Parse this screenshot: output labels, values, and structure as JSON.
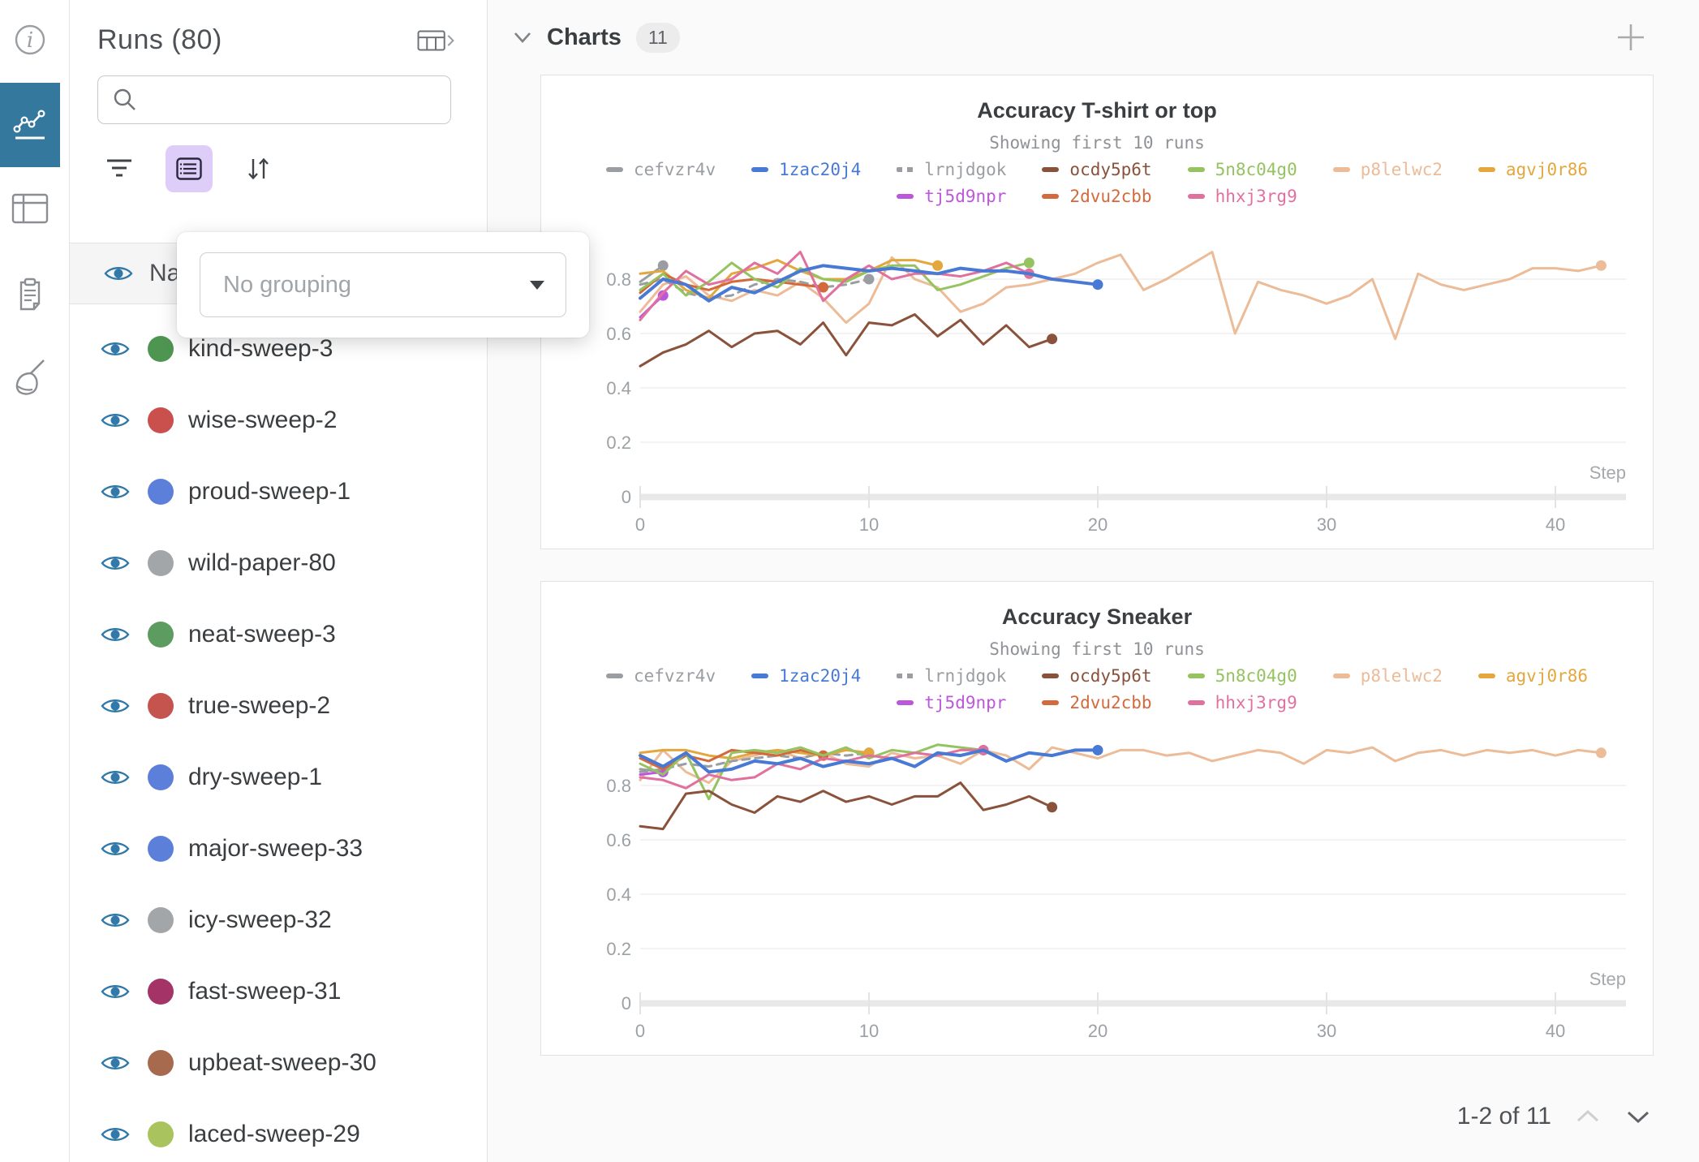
{
  "colors": {
    "rail_active_bg": "#35789E",
    "eye_icon": "#3179A8",
    "group_button_bg": "#DECDF8",
    "panel_border": "#E1E1E1",
    "axis_text": "#9CA1A6",
    "grid_line": "#EFEFEF"
  },
  "rail": {
    "items": [
      {
        "icon": "info-icon",
        "active": false
      },
      {
        "icon": "line-chart-icon",
        "active": true
      },
      {
        "icon": "table-icon",
        "active": false
      },
      {
        "icon": "report-icon",
        "active": false
      },
      {
        "icon": "sweep-broom-icon",
        "active": false
      }
    ]
  },
  "runs_panel": {
    "title": "Runs (80)",
    "search": {
      "value": "",
      "placeholder": ""
    },
    "header_row_label": "Name",
    "grouping_popup": {
      "value": "No grouping"
    },
    "runs": [
      {
        "name": "kind-sweep-3",
        "color": "#4F9552"
      },
      {
        "name": "wise-sweep-2",
        "color": "#C9504C"
      },
      {
        "name": "proud-sweep-1",
        "color": "#5C7FD9"
      },
      {
        "name": "wild-paper-80",
        "color": "#A3A6A9"
      },
      {
        "name": "neat-sweep-3",
        "color": "#5C9C60"
      },
      {
        "name": "true-sweep-2",
        "color": "#C5544F"
      },
      {
        "name": "dry-sweep-1",
        "color": "#5C7FD9"
      },
      {
        "name": "major-sweep-33",
        "color": "#5C7FD9"
      },
      {
        "name": "icy-sweep-32",
        "color": "#A3A6A9"
      },
      {
        "name": "fast-sweep-31",
        "color": "#A43467"
      },
      {
        "name": "upbeat-sweep-30",
        "color": "#A76A4E"
      },
      {
        "name": "laced-sweep-29",
        "color": "#A9C45F"
      }
    ]
  },
  "main": {
    "section_title": "Charts",
    "section_count": "11",
    "pagination_label": "1-2 of 11"
  },
  "chart_data": [
    {
      "type": "line",
      "title": "Accuracy T-shirt or top",
      "subtitle": "Showing first 10 runs",
      "xlabel": "Step",
      "xlim": [
        0,
        43
      ],
      "ylim": [
        0,
        1
      ],
      "x_ticks": [
        0,
        10,
        20,
        30,
        40
      ],
      "y_ticks": [
        0,
        0.2,
        0.4,
        0.6,
        0.8
      ],
      "grid": true,
      "legend_position": "top",
      "legend_split": 7,
      "series": [
        {
          "name": "cefvzr4v",
          "color": "#9A9EA3",
          "dash": false,
          "z": 3,
          "x": [
            0,
            1
          ],
          "y": [
            0.79,
            0.85
          ]
        },
        {
          "name": "1zac20j4",
          "color": "#4879D4",
          "dash": false,
          "z": 9,
          "width": 4,
          "x": [
            0,
            1,
            2,
            3,
            4,
            5,
            6,
            7,
            8,
            9,
            10,
            11,
            12,
            13,
            14,
            15,
            16,
            17,
            18,
            19,
            20
          ],
          "y": [
            0.73,
            0.8,
            0.78,
            0.72,
            0.77,
            0.75,
            0.79,
            0.83,
            0.85,
            0.84,
            0.83,
            0.84,
            0.83,
            0.82,
            0.84,
            0.83,
            0.83,
            0.82,
            0.8,
            0.79,
            0.78
          ]
        },
        {
          "name": "lrnjdgok",
          "color": "#9A9EA3",
          "dash": true,
          "z": 4,
          "x": [
            0,
            1,
            2,
            3,
            4,
            5,
            6,
            7,
            8,
            9,
            10
          ],
          "y": [
            0.78,
            0.8,
            0.75,
            0.73,
            0.74,
            0.78,
            0.8,
            0.79,
            0.77,
            0.78,
            0.8
          ]
        },
        {
          "name": "ocdy5p6t",
          "color": "#8A523B",
          "dash": false,
          "z": 8,
          "x": [
            0,
            1,
            2,
            3,
            4,
            5,
            6,
            7,
            8,
            9,
            10,
            11,
            12,
            13,
            14,
            15,
            16,
            17,
            18
          ],
          "y": [
            0.48,
            0.53,
            0.56,
            0.61,
            0.55,
            0.6,
            0.61,
            0.56,
            0.64,
            0.52,
            0.64,
            0.63,
            0.67,
            0.59,
            0.65,
            0.56,
            0.63,
            0.55,
            0.58
          ]
        },
        {
          "name": "5n8c04g0",
          "color": "#94C360",
          "dash": false,
          "z": 6,
          "x": [
            0,
            1,
            2,
            3,
            4,
            5,
            6,
            7,
            8,
            9,
            10,
            11,
            12,
            13,
            14,
            15,
            16,
            17
          ],
          "y": [
            0.76,
            0.82,
            0.74,
            0.79,
            0.86,
            0.8,
            0.77,
            0.84,
            0.8,
            0.79,
            0.83,
            0.85,
            0.85,
            0.76,
            0.78,
            0.81,
            0.84,
            0.86
          ]
        },
        {
          "name": "p8lelwc2",
          "color": "#ECBB97",
          "dash": false,
          "z": 1,
          "x": [
            0,
            1,
            2,
            3,
            4,
            5,
            6,
            7,
            8,
            9,
            10,
            11,
            12,
            13,
            14,
            15,
            16,
            17,
            18,
            19,
            20,
            21,
            22,
            23,
            24,
            25,
            26,
            27,
            28,
            29,
            30,
            31,
            32,
            33,
            34,
            35,
            36,
            37,
            38,
            39,
            40,
            41,
            42
          ],
          "y": [
            0.68,
            0.78,
            0.81,
            0.74,
            0.72,
            0.76,
            0.74,
            0.79,
            0.73,
            0.64,
            0.71,
            0.88,
            0.8,
            0.77,
            0.68,
            0.71,
            0.77,
            0.78,
            0.8,
            0.82,
            0.86,
            0.89,
            0.76,
            0.8,
            0.85,
            0.9,
            0.6,
            0.79,
            0.76,
            0.74,
            0.71,
            0.74,
            0.8,
            0.58,
            0.82,
            0.78,
            0.76,
            0.78,
            0.8,
            0.84,
            0.84,
            0.83,
            0.85
          ]
        },
        {
          "name": "agvj0r86",
          "color": "#E3A73E",
          "dash": false,
          "z": 5,
          "x": [
            0,
            1,
            2,
            3,
            4,
            5,
            6,
            7,
            8,
            9,
            10,
            11,
            12,
            13
          ],
          "y": [
            0.82,
            0.83,
            0.76,
            0.73,
            0.82,
            0.84,
            0.87,
            0.83,
            0.8,
            0.8,
            0.83,
            0.87,
            0.87,
            0.85
          ]
        },
        {
          "name": "tj5d9npr",
          "color": "#BC57DB",
          "dash": false,
          "z": 3,
          "x": [
            0,
            1
          ],
          "y": [
            0.66,
            0.74
          ]
        },
        {
          "name": "2dvu2cbb",
          "color": "#D3693C",
          "dash": false,
          "z": 5,
          "x": [
            0,
            1,
            2,
            3,
            4,
            5,
            6,
            7,
            8
          ],
          "y": [
            0.75,
            0.82,
            0.78,
            0.76,
            0.79,
            0.8,
            0.79,
            0.78,
            0.77
          ]
        },
        {
          "name": "hhxj3rg9",
          "color": "#E0709E",
          "dash": false,
          "z": 7,
          "x": [
            0,
            1,
            2,
            3,
            4,
            5,
            6,
            7,
            8,
            9,
            10,
            11,
            12,
            13,
            14,
            15,
            16,
            17
          ],
          "y": [
            0.65,
            0.75,
            0.83,
            0.78,
            0.8,
            0.86,
            0.82,
            0.9,
            0.72,
            0.8,
            0.85,
            0.8,
            0.82,
            0.82,
            0.81,
            0.83,
            0.86,
            0.82
          ]
        }
      ]
    },
    {
      "type": "line",
      "title": "Accuracy Sneaker",
      "subtitle": "Showing first 10 runs",
      "xlabel": "Step",
      "xlim": [
        0,
        43
      ],
      "ylim": [
        0,
        1
      ],
      "x_ticks": [
        0,
        10,
        20,
        30,
        40
      ],
      "y_ticks": [
        0,
        0.2,
        0.4,
        0.6,
        0.8
      ],
      "grid": true,
      "legend_position": "top",
      "legend_split": 7,
      "series": [
        {
          "name": "cefvzr4v",
          "color": "#9A9EA3",
          "dash": false,
          "z": 3,
          "x": [
            0,
            1
          ],
          "y": [
            0.86,
            0.85
          ]
        },
        {
          "name": "1zac20j4",
          "color": "#4879D4",
          "dash": false,
          "z": 9,
          "width": 4,
          "x": [
            0,
            1,
            2,
            3,
            4,
            5,
            6,
            7,
            8,
            9,
            10,
            11,
            12,
            13,
            14,
            15,
            16,
            17,
            18,
            19,
            20
          ],
          "y": [
            0.91,
            0.87,
            0.92,
            0.85,
            0.86,
            0.89,
            0.88,
            0.9,
            0.87,
            0.89,
            0.88,
            0.9,
            0.87,
            0.92,
            0.91,
            0.93,
            0.89,
            0.92,
            0.91,
            0.93,
            0.93
          ]
        },
        {
          "name": "lrnjdgok",
          "color": "#9A9EA3",
          "dash": true,
          "z": 4,
          "x": [
            0,
            1,
            2,
            3,
            4,
            5,
            6,
            7,
            8,
            9,
            10
          ],
          "y": [
            0.85,
            0.86,
            0.88,
            0.87,
            0.89,
            0.9,
            0.91,
            0.9,
            0.92,
            0.91,
            0.92
          ]
        },
        {
          "name": "ocdy5p6t",
          "color": "#8A523B",
          "dash": false,
          "z": 8,
          "x": [
            0,
            1,
            2,
            3,
            4,
            5,
            6,
            7,
            8,
            9,
            10,
            11,
            12,
            13,
            14,
            15,
            16,
            17,
            18
          ],
          "y": [
            0.65,
            0.64,
            0.77,
            0.78,
            0.73,
            0.7,
            0.76,
            0.74,
            0.78,
            0.74,
            0.76,
            0.73,
            0.76,
            0.76,
            0.81,
            0.71,
            0.73,
            0.76,
            0.72
          ]
        },
        {
          "name": "5n8c04g0",
          "color": "#94C360",
          "dash": false,
          "z": 6,
          "x": [
            0,
            1,
            2,
            3,
            4,
            5,
            6,
            7,
            8,
            9,
            10,
            11,
            12,
            13,
            14,
            15
          ],
          "y": [
            0.88,
            0.84,
            0.92,
            0.75,
            0.92,
            0.93,
            0.92,
            0.94,
            0.91,
            0.94,
            0.9,
            0.93,
            0.92,
            0.95,
            0.94,
            0.93
          ]
        },
        {
          "name": "p8lelwc2",
          "color": "#ECBB97",
          "dash": false,
          "z": 1,
          "x": [
            0,
            1,
            2,
            3,
            4,
            5,
            6,
            7,
            8,
            9,
            10,
            11,
            12,
            13,
            14,
            15,
            16,
            17,
            18,
            19,
            20,
            21,
            22,
            23,
            24,
            25,
            26,
            27,
            28,
            29,
            30,
            31,
            32,
            33,
            34,
            35,
            36,
            37,
            38,
            39,
            40,
            41,
            42
          ],
          "y": [
            0.82,
            0.93,
            0.85,
            0.81,
            0.89,
            0.91,
            0.93,
            0.9,
            0.92,
            0.88,
            0.87,
            0.92,
            0.9,
            0.91,
            0.88,
            0.93,
            0.91,
            0.86,
            0.94,
            0.92,
            0.9,
            0.93,
            0.93,
            0.91,
            0.92,
            0.89,
            0.91,
            0.93,
            0.92,
            0.88,
            0.93,
            0.92,
            0.94,
            0.89,
            0.92,
            0.93,
            0.91,
            0.93,
            0.92,
            0.93,
            0.91,
            0.93,
            0.92
          ]
        },
        {
          "name": "agvj0r86",
          "color": "#E3A73E",
          "dash": false,
          "z": 5,
          "x": [
            0,
            1,
            2,
            3,
            4,
            5,
            6,
            7,
            8,
            9,
            10
          ],
          "y": [
            0.92,
            0.93,
            0.93,
            0.91,
            0.9,
            0.92,
            0.93,
            0.92,
            0.91,
            0.93,
            0.92
          ]
        },
        {
          "name": "tj5d9npr",
          "color": "#BC57DB",
          "dash": false,
          "z": 3,
          "x": [
            0,
            1
          ],
          "y": [
            0.84,
            0.85
          ]
        },
        {
          "name": "2dvu2cbb",
          "color": "#D3693C",
          "dash": false,
          "z": 5,
          "x": [
            0,
            1,
            2,
            3,
            4,
            5,
            6,
            7,
            8
          ],
          "y": [
            0.9,
            0.86,
            0.91,
            0.89,
            0.93,
            0.92,
            0.91,
            0.93,
            0.91
          ]
        },
        {
          "name": "hhxj3rg9",
          "color": "#E0709E",
          "dash": false,
          "z": 7,
          "x": [
            0,
            1,
            2,
            3,
            4,
            5,
            6,
            7,
            8,
            9,
            10,
            11,
            12,
            13,
            14,
            15
          ],
          "y": [
            0.83,
            0.82,
            0.79,
            0.84,
            0.82,
            0.83,
            0.88,
            0.86,
            0.9,
            0.89,
            0.91,
            0.9,
            0.92,
            0.91,
            0.93,
            0.93
          ]
        }
      ]
    }
  ]
}
